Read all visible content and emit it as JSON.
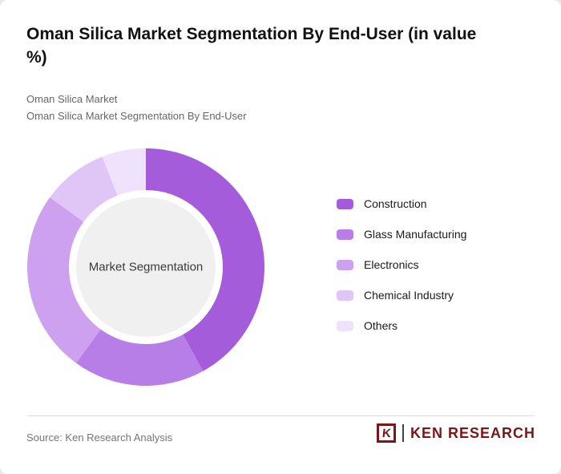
{
  "title": "Oman Silica Market Segmentation By End-User (in value %)",
  "subtitle_line1": "Oman Silica Market",
  "subtitle_line2": "Oman Silica Market Segmentation By End-User",
  "chart_data": {
    "type": "pie",
    "donut": true,
    "start_angle_deg": -90,
    "direction": "clockwise",
    "center_label": "Market Segmentation",
    "categories": [
      "Construction",
      "Glass Manufacturing",
      "Electronics",
      "Chemical Industry",
      "Others"
    ],
    "values": [
      42,
      18,
      25,
      9,
      6
    ],
    "colors": [
      "#a55cdb",
      "#b87ee7",
      "#cda1f0",
      "#e0c6f7",
      "#efe2fc"
    ],
    "center_fill": "#f0f0f0",
    "legend_position": "right"
  },
  "footer": {
    "source": "Source: Ken Research Analysis",
    "logo_letter": "K",
    "logo_text": "KEN RESEARCH",
    "logo_color": "#7d1517"
  }
}
